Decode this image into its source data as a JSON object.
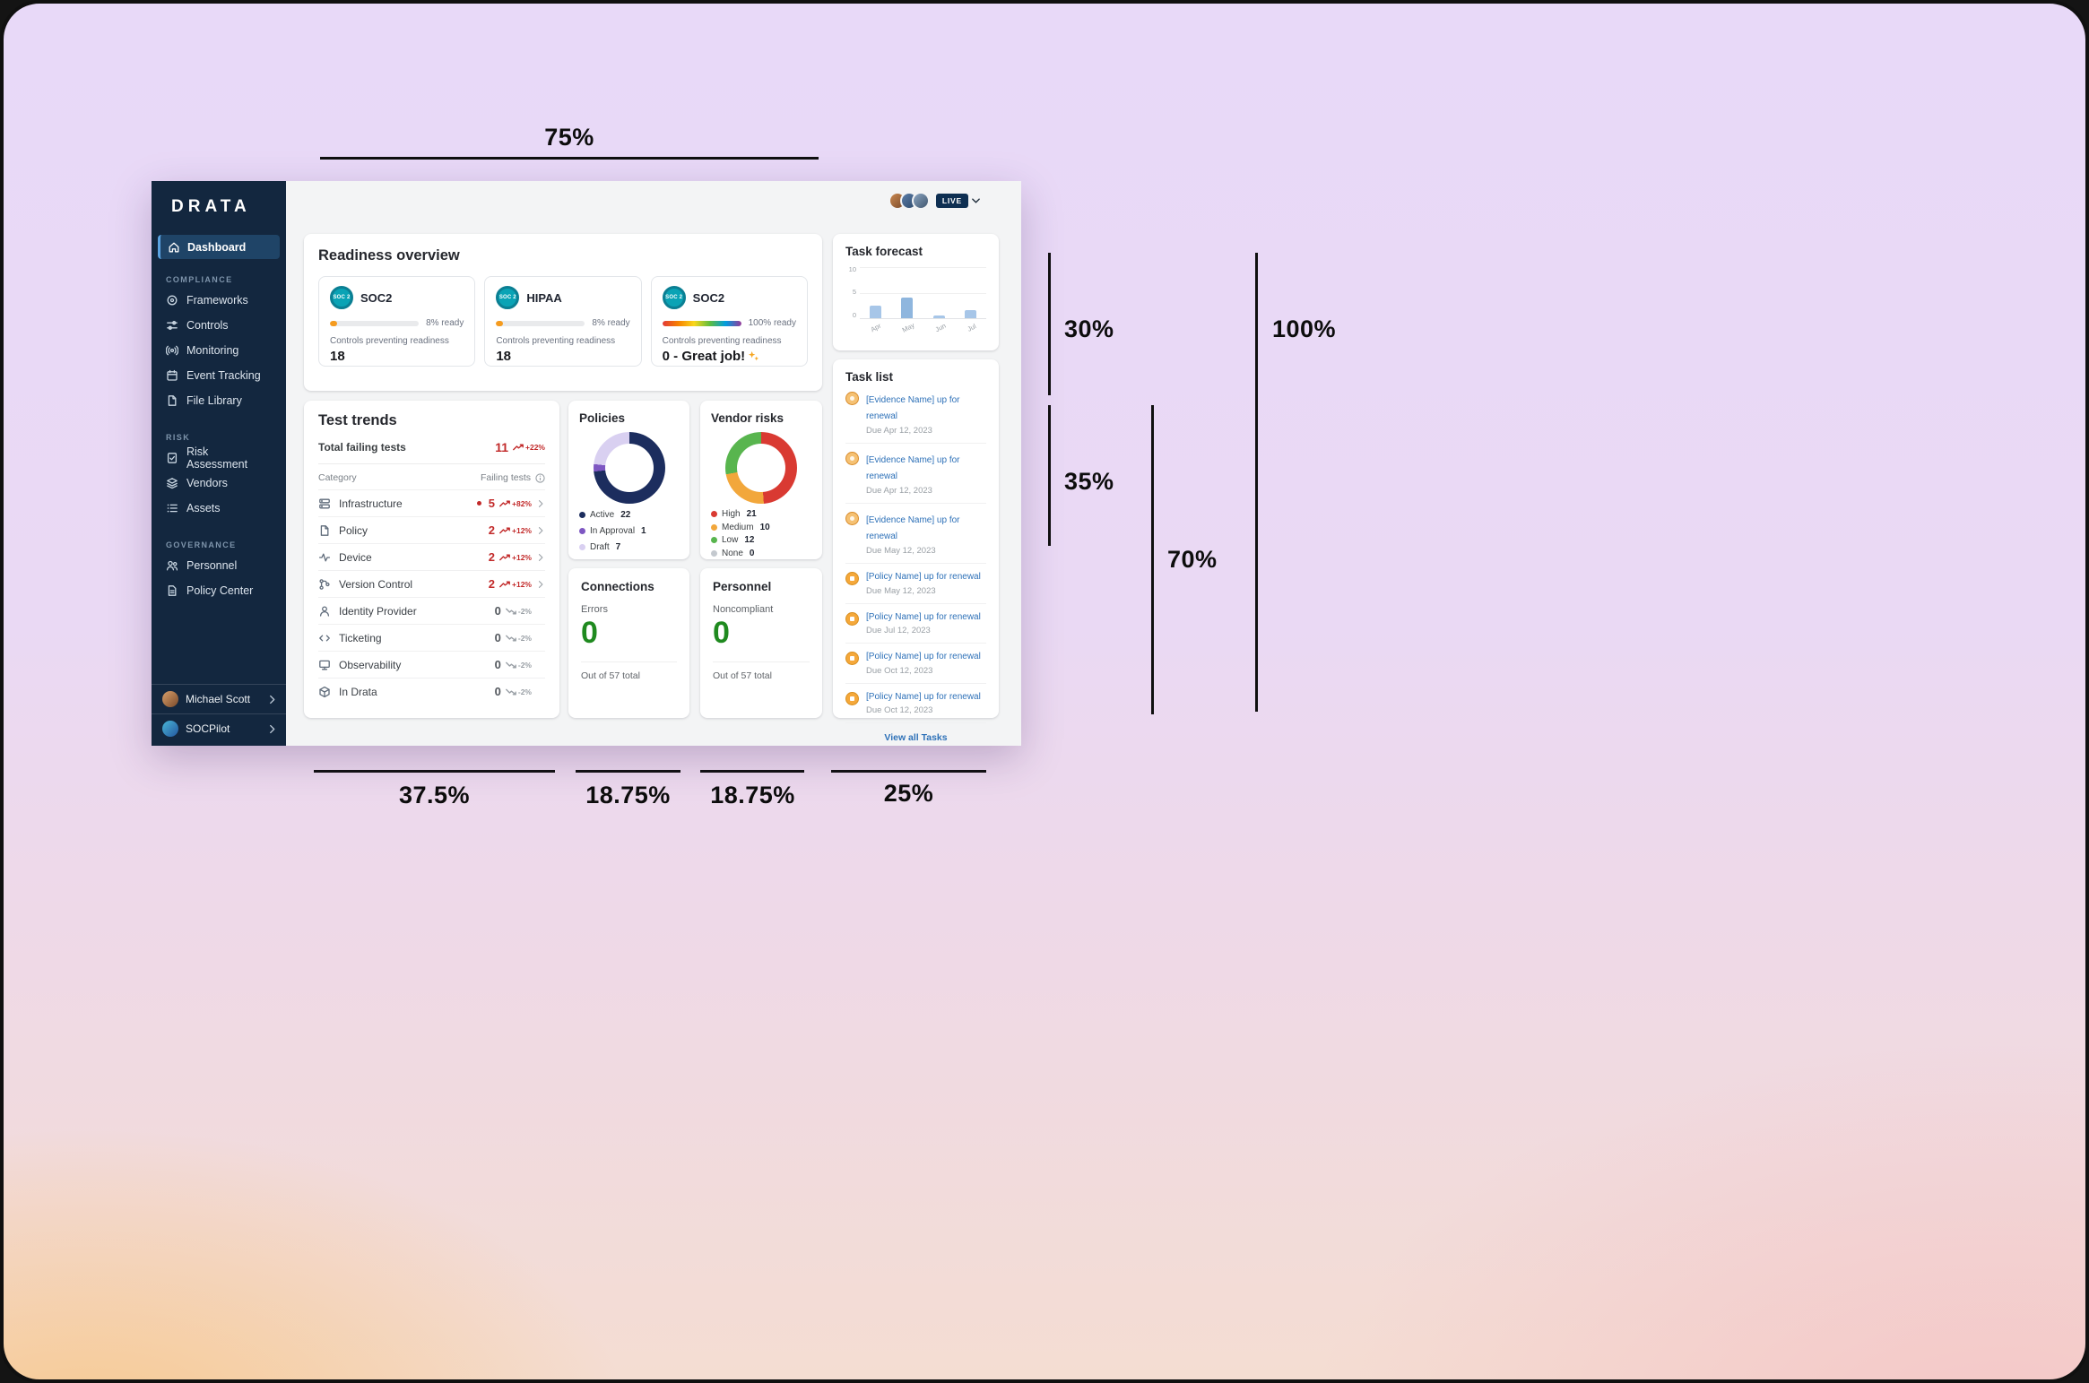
{
  "annotations": {
    "top": {
      "label": "75%"
    },
    "right": [
      {
        "label": "30%"
      },
      {
        "label": "35%"
      },
      {
        "label": "70%"
      },
      {
        "label": "100%"
      }
    ],
    "bottom": [
      {
        "label": "37.5%"
      },
      {
        "label": "18.75%"
      },
      {
        "label": "18.75%"
      },
      {
        "label": "25%"
      }
    ]
  },
  "sidebar": {
    "logo": "DRATA",
    "dashboard_label": "Dashboard",
    "sections": [
      {
        "title": "COMPLIANCE",
        "items": [
          "Frameworks",
          "Controls",
          "Monitoring",
          "Event Tracking",
          "File Library"
        ]
      },
      {
        "title": "RISK",
        "items": [
          "Risk Assessment",
          "Vendors",
          "Assets"
        ]
      },
      {
        "title": "GOVERNANCE",
        "items": [
          "Personnel",
          "Policy Center"
        ]
      }
    ],
    "footer": [
      {
        "label": "Michael Scott"
      },
      {
        "label": "SOCPilot"
      }
    ]
  },
  "header": {
    "live_label": "LIVE"
  },
  "main": {
    "readiness": {
      "title": "Readiness overview",
      "cards": [
        {
          "name": "SOC2",
          "badge": "SOC 2",
          "percent": 8,
          "ready_label": "8% ready",
          "caption": "Controls preventing readiness",
          "value": "18"
        },
        {
          "name": "HIPAA",
          "badge": "SOC 2",
          "percent": 8,
          "ready_label": "8% ready",
          "caption": "Controls preventing readiness",
          "value": "18"
        },
        {
          "name": "SOC2",
          "badge": "SOC 2",
          "percent": 100,
          "ready_label": "100% ready",
          "caption": "Controls preventing readiness",
          "value": "0 - Great job!"
        }
      ]
    },
    "test_trends": {
      "title": "Test trends",
      "total_label": "Total failing tests",
      "total_value": "11",
      "total_trend": "+22%",
      "col_category": "Category",
      "col_failing": "Failing tests",
      "rows": [
        {
          "label": "Infrastructure",
          "value": "5",
          "trend": "+82%"
        },
        {
          "label": "Policy",
          "value": "2",
          "trend": "+12%"
        },
        {
          "label": "Device",
          "value": "2",
          "trend": "+12%"
        },
        {
          "label": "Version Control",
          "value": "2",
          "trend": "+12%"
        },
        {
          "label": "Identity Provider",
          "value": "0",
          "trend": "-2%"
        },
        {
          "label": "Ticketing",
          "value": "0",
          "trend": "-2%"
        },
        {
          "label": "Observability",
          "value": "0",
          "trend": "-2%"
        },
        {
          "label": "In Drata",
          "value": "0",
          "trend": "-2%"
        }
      ]
    },
    "policies": {
      "title": "Policies"
    },
    "vendor_risks": {
      "title": "Vendor risks"
    },
    "connections": {
      "title": "Connections",
      "label": "Errors",
      "value": "0",
      "footer": "Out of 57 total"
    },
    "personnel": {
      "title": "Personnel",
      "label": "Noncompliant",
      "value": "0",
      "footer": "Out of 57 total"
    },
    "task_forecast": {
      "title": "Task forecast"
    },
    "task_list": {
      "title": "Task list",
      "items": [
        {
          "type": "evidence",
          "link": "[Evidence Name] up for renewal",
          "due": "Due Apr 12, 2023"
        },
        {
          "type": "evidence",
          "link": "[Evidence Name] up for renewal",
          "due": "Due Apr 12, 2023"
        },
        {
          "type": "evidence",
          "link": "[Evidence Name] up for renewal",
          "due": "Due May 12, 2023"
        },
        {
          "type": "policy",
          "link": "[Policy Name] up for renewal",
          "due": "Due May 12, 2023"
        },
        {
          "type": "policy",
          "link": "[Policy Name] up for renewal",
          "due": "Due Jul 12, 2023"
        },
        {
          "type": "policy",
          "link": "[Policy Name] up for renewal",
          "due": "Due Oct 12, 2023"
        },
        {
          "type": "policy",
          "link": "[Policy Name] up for renewal",
          "due": "Due Oct 12, 2023"
        }
      ],
      "view_all": "View all Tasks"
    }
  },
  "chart_data": [
    {
      "id": "policies-donut",
      "type": "pie",
      "title": "Policies",
      "segments": [
        {
          "label": "Active",
          "value": 22,
          "color": "#1c2d5e"
        },
        {
          "label": "In Approval",
          "value": 1,
          "color": "#7e57c2"
        },
        {
          "label": "Draft",
          "value": 7,
          "color": "#d9d0f1"
        }
      ],
      "legend_position": "bottom"
    },
    {
      "id": "vendor-risks-donut",
      "type": "pie",
      "title": "Vendor risks",
      "segments": [
        {
          "label": "High",
          "value": 21,
          "color": "#d93a32"
        },
        {
          "label": "Medium",
          "value": 10,
          "color": "#f2a73b"
        },
        {
          "label": "Low",
          "value": 12,
          "color": "#58b54e"
        },
        {
          "label": "None",
          "value": 0,
          "color": "#c4c9cf"
        }
      ],
      "legend_position": "bottom"
    },
    {
      "id": "task-forecast-bars",
      "type": "bar",
      "title": "Task forecast",
      "categories": [
        "Apr",
        "May",
        "Jun",
        "Jul"
      ],
      "values": [
        2.5,
        4,
        0.5,
        1.5
      ],
      "ylim": [
        0,
        10
      ],
      "yticks": [
        0,
        5,
        10
      ],
      "colors": [
        "#a7c6e8",
        "#8fb6de",
        "#a7c6e8",
        "#a7c6e8"
      ]
    },
    {
      "id": "readiness-progress",
      "type": "progress",
      "values": [
        8,
        8,
        100
      ],
      "accent": "#f59b1e"
    }
  ]
}
